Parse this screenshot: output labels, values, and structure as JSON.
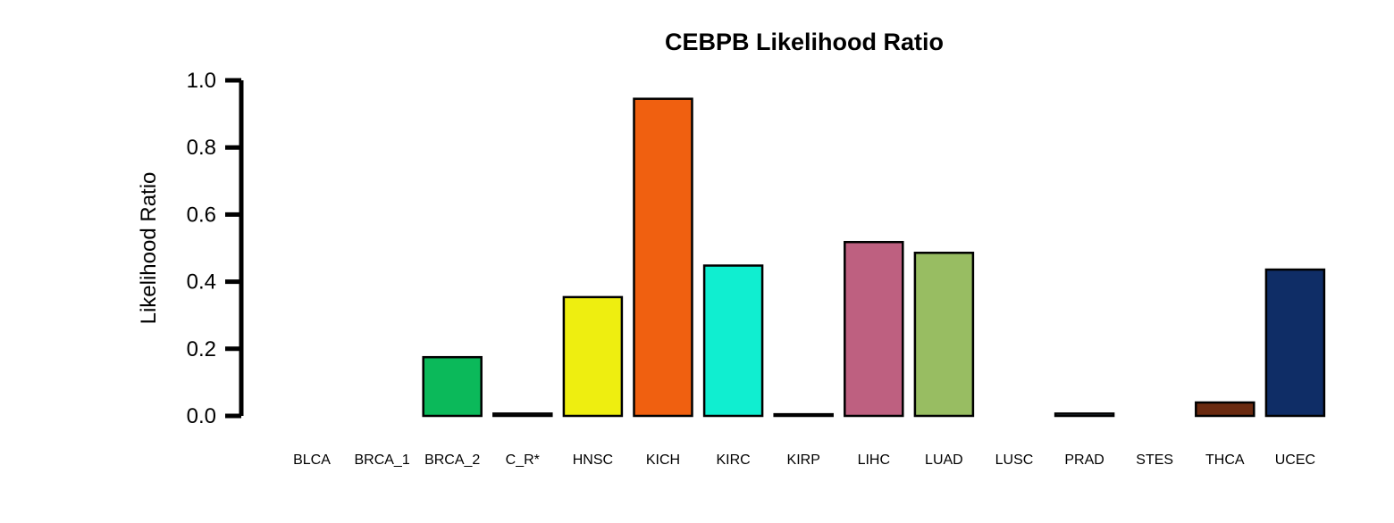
{
  "chart_data": {
    "type": "bar",
    "title": "CEBPB Likelihood Ratio",
    "xlabel": "",
    "ylabel": "Likelihood Ratio",
    "ylim": [
      0,
      1.0
    ],
    "yticks": [
      "0.0",
      "0.2",
      "0.4",
      "0.6",
      "0.8",
      "1.0"
    ],
    "categories": [
      "BLCA",
      "BRCA_1",
      "BRCA_2",
      "C_R*",
      "HNSC",
      "KICH",
      "KIRC",
      "KIRP",
      "LIHC",
      "LUAD",
      "LUSC",
      "PRAD",
      "STES",
      "THCA",
      "UCEC"
    ],
    "values": [
      0.0,
      0.0,
      0.175,
      0.007,
      0.354,
      0.945,
      0.448,
      0.005,
      0.518,
      0.486,
      0.0,
      0.007,
      0.0,
      0.04,
      0.436
    ],
    "colors": [
      "#f28e8e",
      "#a3a3e6",
      "#0bb95a",
      "#333333",
      "#eeee10",
      "#f06010",
      "#10eed0",
      "#444444",
      "#be6080",
      "#98bd62",
      "#777777",
      "#90c0e0",
      "#888888",
      "#6a2a10",
      "#0f2d66"
    ],
    "grid": false,
    "legend": "none"
  }
}
